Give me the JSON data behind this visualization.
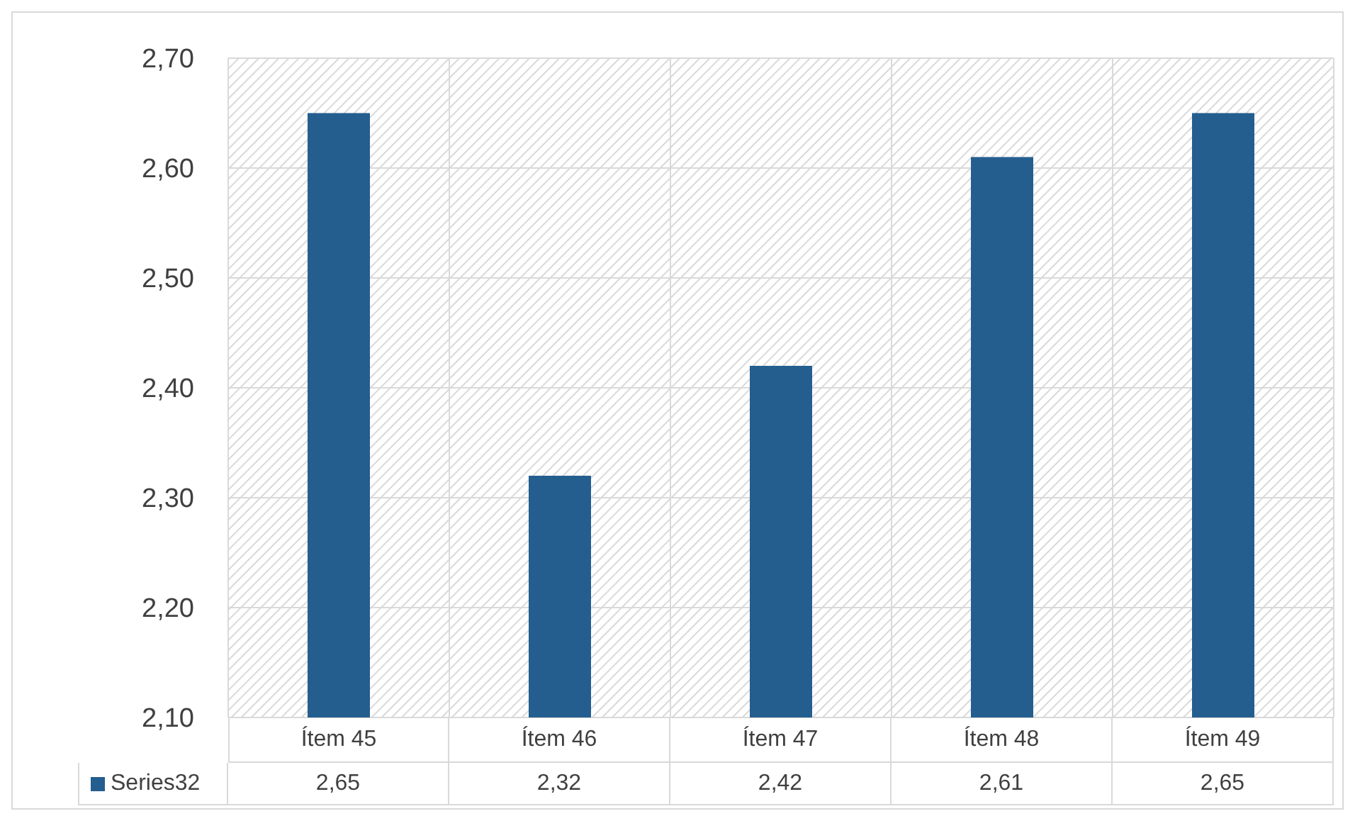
{
  "chart_data": {
    "type": "bar",
    "categories": [
      "Ítem 45",
      "Ítem 46",
      "Ítem 47",
      "Ítem 48",
      "Ítem 49"
    ],
    "series": [
      {
        "name": "Series32",
        "color": "#245e8f",
        "values": [
          2.65,
          2.32,
          2.42,
          2.61,
          2.65
        ],
        "value_labels": [
          "2,65",
          "2,32",
          "2,42",
          "2,61",
          "2,65"
        ]
      }
    ],
    "ylim": [
      2.1,
      2.7
    ],
    "yticks": [
      {
        "value": 2.1,
        "label": "2,10"
      },
      {
        "value": 2.2,
        "label": "2,20"
      },
      {
        "value": 2.3,
        "label": "2,30"
      },
      {
        "value": 2.4,
        "label": "2,40"
      },
      {
        "value": 2.5,
        "label": "2,50"
      },
      {
        "value": 2.6,
        "label": "2,60"
      },
      {
        "value": 2.7,
        "label": "2,70"
      }
    ],
    "grid": true,
    "legend": "bottom"
  }
}
